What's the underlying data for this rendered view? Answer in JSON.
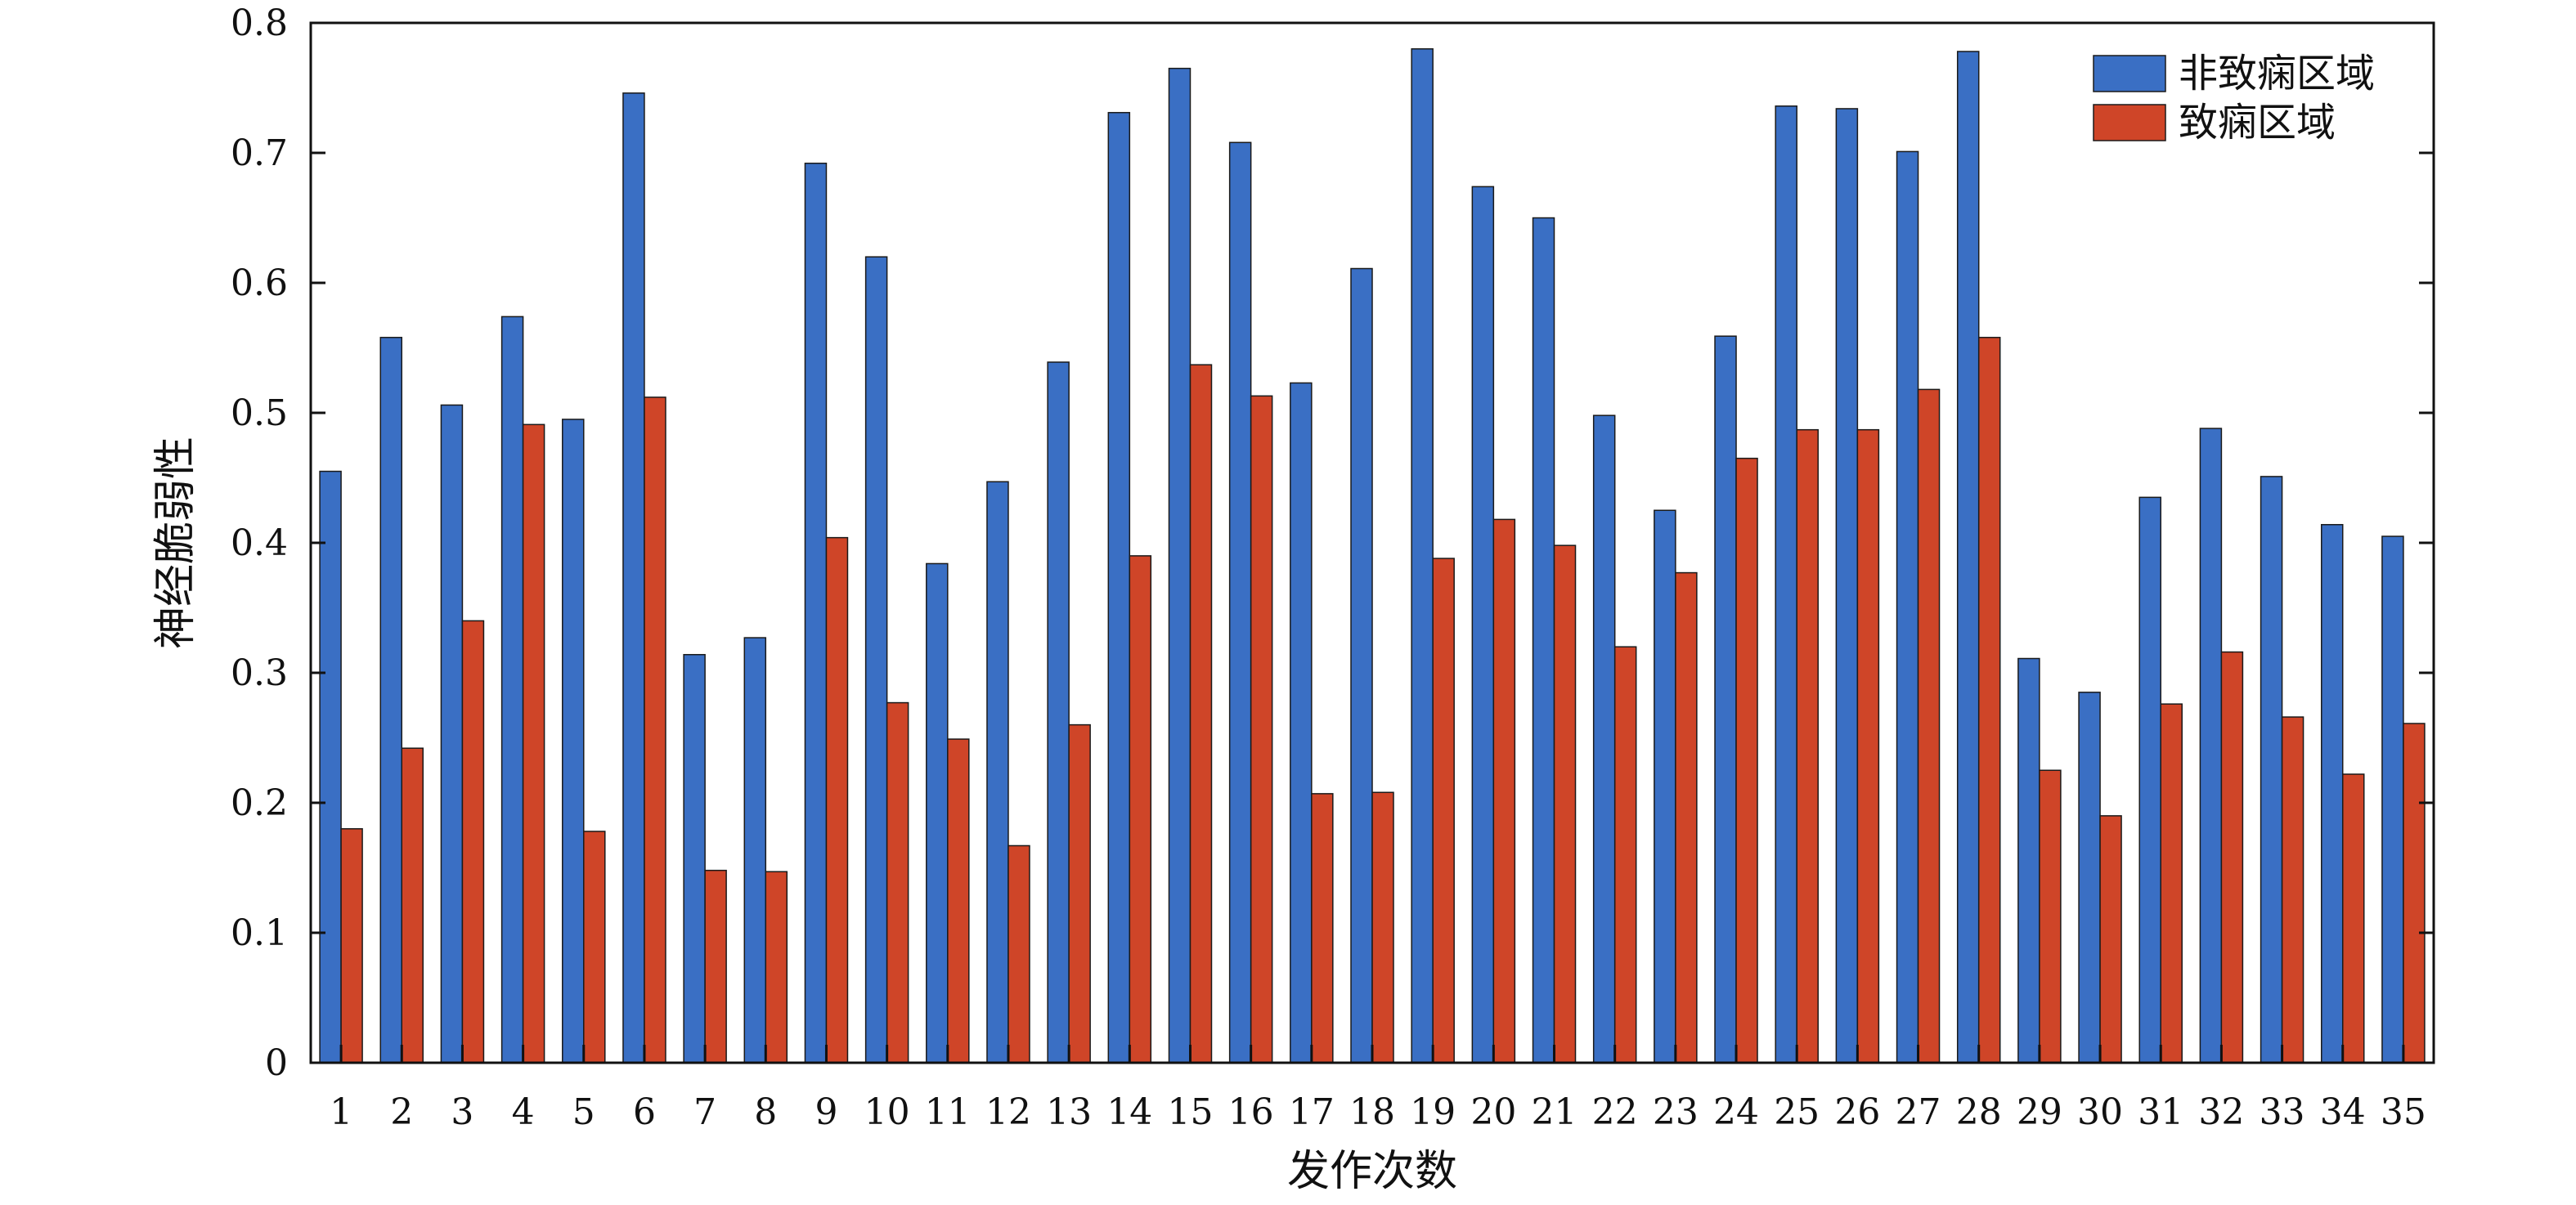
{
  "chart_data": {
    "type": "bar",
    "title": "",
    "xlabel": "发作次数",
    "ylabel": "神经脆弱性",
    "ylim": [
      0,
      0.8
    ],
    "yticks": [
      0,
      0.1,
      0.2,
      0.3,
      0.4,
      0.5,
      0.6,
      0.7,
      0.8
    ],
    "ytick_labels": [
      "0",
      "0.1",
      "0.2",
      "0.3",
      "0.4",
      "0.5",
      "0.6",
      "0.7",
      "0.8"
    ],
    "grid": false,
    "legend_position": "top-right",
    "categories": [
      "1",
      "2",
      "3",
      "4",
      "5",
      "6",
      "7",
      "8",
      "9",
      "10",
      "11",
      "12",
      "13",
      "14",
      "15",
      "16",
      "17",
      "18",
      "19",
      "20",
      "21",
      "22",
      "23",
      "24",
      "25",
      "26",
      "27",
      "28",
      "29",
      "30",
      "31",
      "32",
      "33",
      "34",
      "35"
    ],
    "series": [
      {
        "name": "非致痫区域",
        "color": "#3a6fc4",
        "values": [
          0.455,
          0.558,
          0.506,
          0.574,
          0.495,
          0.746,
          0.314,
          0.327,
          0.692,
          0.62,
          0.384,
          0.447,
          0.539,
          0.731,
          0.765,
          0.708,
          0.523,
          0.611,
          0.78,
          0.674,
          0.65,
          0.498,
          0.425,
          0.559,
          0.736,
          0.734,
          0.701,
          0.778,
          0.311,
          0.285,
          0.435,
          0.488,
          0.451,
          0.414,
          0.405
        ]
      },
      {
        "name": "致痫区域",
        "color": "#cf4528",
        "values": [
          0.18,
          0.242,
          0.34,
          0.491,
          0.178,
          0.512,
          0.148,
          0.147,
          0.404,
          0.277,
          0.249,
          0.167,
          0.26,
          0.39,
          0.537,
          0.513,
          0.207,
          0.208,
          0.388,
          0.418,
          0.398,
          0.32,
          0.377,
          0.465,
          0.487,
          0.487,
          0.518,
          0.558,
          0.225,
          0.19,
          0.276,
          0.316,
          0.266,
          0.222,
          0.261
        ]
      }
    ]
  }
}
